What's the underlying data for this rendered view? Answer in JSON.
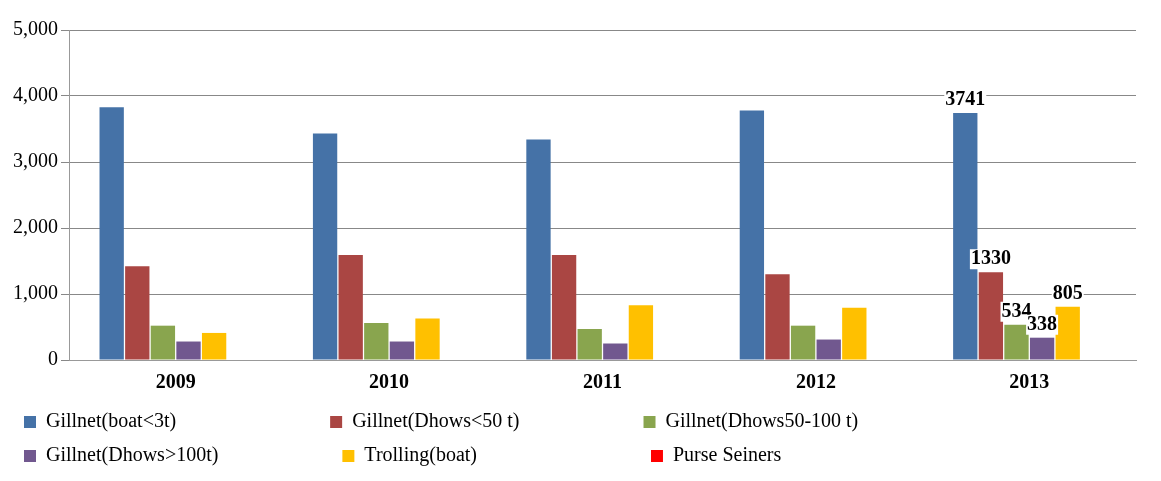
{
  "chart_data": {
    "type": "bar",
    "categories": [
      "2009",
      "2010",
      "2011",
      "2012",
      "2013"
    ],
    "ylim": [
      0,
      5000
    ],
    "yticks": [
      {
        "value": 0,
        "label": "0"
      },
      {
        "value": 1000,
        "label": "1,000"
      },
      {
        "value": 2000,
        "label": "2,000"
      },
      {
        "value": 3000,
        "label": "3,000"
      },
      {
        "value": 4000,
        "label": "4,000"
      },
      {
        "value": 5000,
        "label": "5,000"
      }
    ],
    "grid": "y",
    "legend": "bottom",
    "series": [
      {
        "name": "Gillnet(boat<3t)",
        "color": "#4572a7",
        "values": [
          3830,
          3430,
          3340,
          3780,
          3741
        ],
        "value_labels": [
          null,
          null,
          null,
          null,
          "3741"
        ]
      },
      {
        "name": "Gillnet(Dhows<50 t)",
        "color": "#aa4643",
        "values": [
          1420,
          1590,
          1590,
          1300,
          1330
        ],
        "value_labels": [
          null,
          null,
          null,
          null,
          "1330"
        ]
      },
      {
        "name": "Gillnet(Dhows50-100 t)",
        "color": "#89a54e",
        "values": [
          520,
          560,
          470,
          520,
          534
        ],
        "value_labels": [
          null,
          null,
          null,
          null,
          "534"
        ]
      },
      {
        "name": "Gillnet(Dhows>100t)",
        "color": "#71588f",
        "values": [
          280,
          280,
          250,
          310,
          338
        ],
        "value_labels": [
          null,
          null,
          null,
          null,
          "338"
        ]
      },
      {
        "name": "Trolling(boat)",
        "color": "#ffc000",
        "values": [
          410,
          630,
          830,
          790,
          805
        ],
        "value_labels": [
          null,
          null,
          null,
          null,
          "805"
        ]
      },
      {
        "name": "Purse Seiners",
        "color": "#ff0000",
        "values": [
          null,
          null,
          null,
          null,
          null
        ]
      }
    ]
  }
}
